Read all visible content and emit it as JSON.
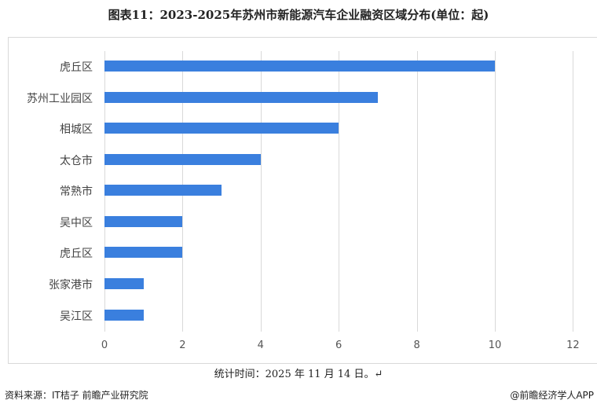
{
  "title": "图表11：2023-2025年苏州市新能源汽车企业融资区域分布(单位：起)",
  "note": "统计时间：2025 年 11 月 14 日。↵",
  "source": "资料来源：IT桔子 前瞻产业研究院",
  "brand": "@前瞻经济学人APP",
  "colors": {
    "bar": "#3a7fde",
    "grid": "#d9d9d9"
  },
  "chart_data": {
    "type": "bar",
    "orientation": "horizontal",
    "title": "图表11：2023-2025年苏州市新能源汽车企业融资区域分布(单位：起)",
    "categories": [
      "虎丘区",
      "苏州工业园区",
      "相城区",
      "太仓市",
      "常熟市",
      "吴中区",
      "虎丘区",
      "张家港市",
      "吴江区"
    ],
    "values": [
      10,
      7,
      6,
      4,
      3,
      2,
      2,
      1,
      1
    ],
    "xlabel": "",
    "ylabel": "",
    "xlim": [
      0,
      12
    ],
    "xticks": [
      "0",
      "2",
      "4",
      "6",
      "8",
      "10",
      "12"
    ],
    "grid": true,
    "legend": null
  }
}
